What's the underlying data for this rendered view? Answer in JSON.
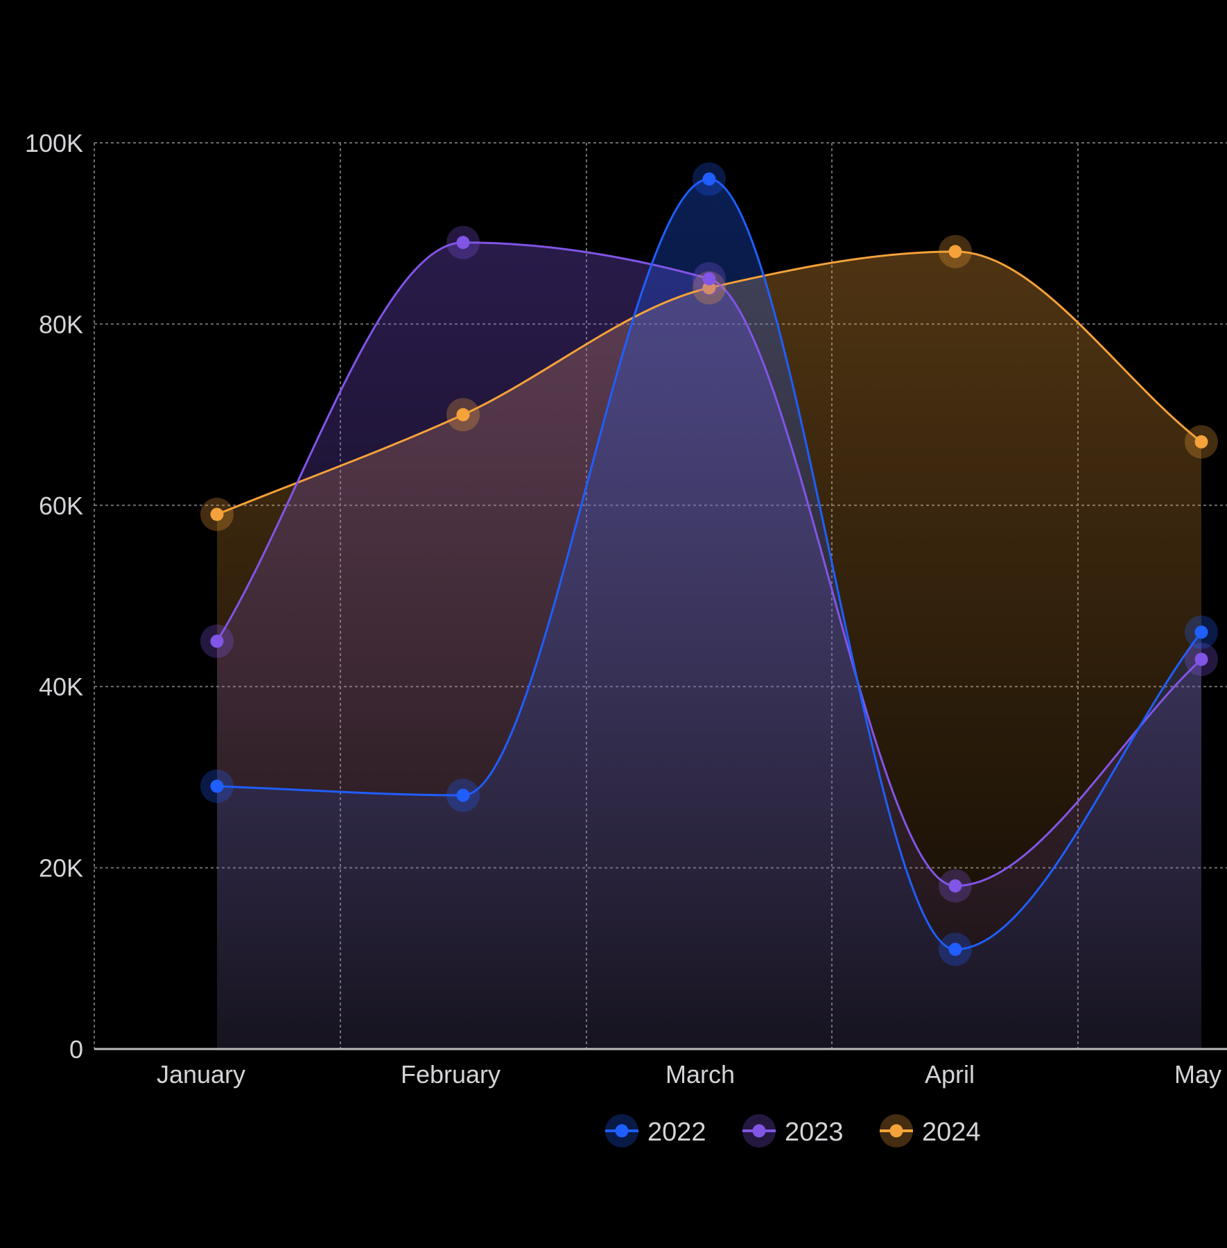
{
  "chart_data": {
    "type": "area",
    "title": "",
    "xlabel": "",
    "ylabel": "",
    "categories": [
      "January",
      "February",
      "March",
      "April",
      "May"
    ],
    "ylim": [
      0,
      100000
    ],
    "y_ticks": [
      0,
      20000,
      40000,
      60000,
      80000,
      100000
    ],
    "y_tick_labels": [
      "0",
      "20K",
      "40K",
      "60K",
      "80K",
      "100K"
    ],
    "grid": true,
    "legend_position": "bottom-center",
    "series": [
      {
        "name": "2022",
        "values": [
          29000,
          28000,
          96000,
          11000,
          46000
        ],
        "color": "#1f5eff"
      },
      {
        "name": "2023",
        "values": [
          45000,
          89000,
          85000,
          18000,
          43000
        ],
        "color": "#8155e6"
      },
      {
        "name": "2024",
        "values": [
          59000,
          70000,
          84000,
          88000,
          67000
        ],
        "color": "#f5a23a"
      }
    ]
  }
}
